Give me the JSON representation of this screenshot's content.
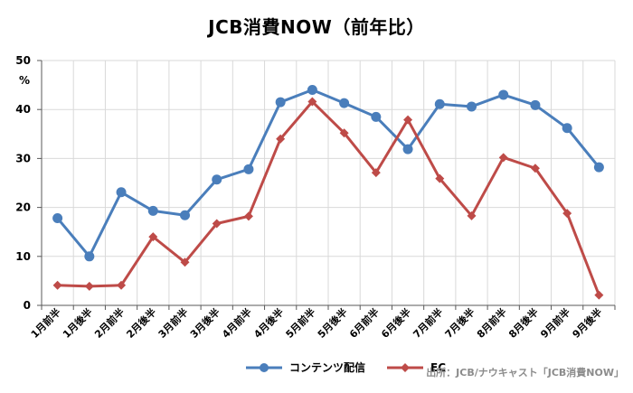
{
  "chart_data": {
    "type": "line",
    "title": "JCB消費NOW（前年比）",
    "ylabel": "%",
    "ylim": [
      0,
      50
    ],
    "yticks": [
      0,
      10,
      20,
      30,
      40,
      50
    ],
    "grid": true,
    "legend_position": "bottom",
    "categories": [
      "1月前半",
      "1月後半",
      "2月前半",
      "2月後半",
      "3月前半",
      "3月後半",
      "4月前半",
      "4月後半",
      "5月前半",
      "5月後半",
      "6月前半",
      "6月後半",
      "7月前半",
      "7月後半",
      "8月前半",
      "8月後半",
      "9月前半",
      "9月後半"
    ],
    "series": [
      {
        "name": "コンテンツ配信",
        "color": "#4a7ebb",
        "marker": "circle",
        "values": [
          17.8,
          10.0,
          23.1,
          19.3,
          18.4,
          25.7,
          27.8,
          41.5,
          44.0,
          41.3,
          38.5,
          31.9,
          41.1,
          40.6,
          43.0,
          40.9,
          36.2,
          28.2
        ]
      },
      {
        "name": "EC",
        "color": "#be4b48",
        "marker": "diamond",
        "values": [
          4.1,
          3.9,
          4.1,
          14.0,
          8.8,
          16.7,
          18.2,
          34.0,
          41.6,
          35.2,
          27.1,
          37.9,
          25.9,
          18.3,
          30.2,
          28.0,
          18.8,
          2.1
        ]
      }
    ],
    "source": "出所：JCB/ナウキャスト「JCB消費NOW」"
  }
}
